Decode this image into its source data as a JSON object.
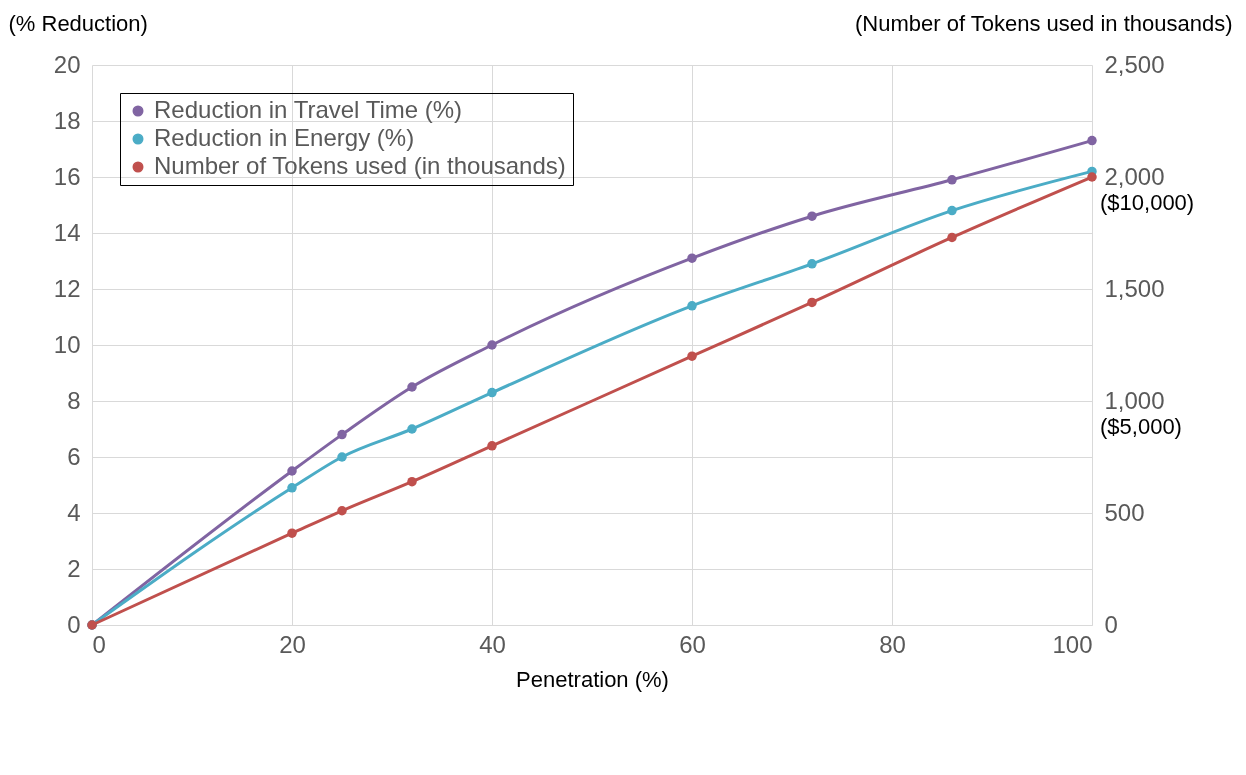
{
  "chart_data": {
    "type": "line",
    "xlabel": "Penetration (%)",
    "ylabel": "(% Reduction)",
    "y2label": "(Number of Tokens used in thousands)",
    "x": [
      0,
      20,
      25,
      32,
      40,
      60,
      72,
      86,
      100
    ],
    "series": [
      {
        "name": "Reduction in Travel Time (%)",
        "color": "#8064a2",
        "values": [
          0,
          5.5,
          6.8,
          8.5,
          10.0,
          13.1,
          14.6,
          15.9,
          17.3
        ]
      },
      {
        "name": "Reduction in Energy  (%)",
        "color": "#4bacc6",
        "values": [
          0,
          4.9,
          6.0,
          7.0,
          8.3,
          11.4,
          12.9,
          14.8,
          16.2
        ]
      },
      {
        "name": "Number of Tokens used (in thousands)",
        "color": "#c0504d",
        "axis": "y2",
        "values": [
          0,
          410,
          510,
          640,
          800,
          1200,
          1440,
          1730,
          2000
        ]
      }
    ],
    "xlim": [
      0,
      100
    ],
    "xticks": [
      0,
      20,
      40,
      60,
      80,
      100
    ],
    "ylim": [
      0,
      20
    ],
    "yticks": [
      0,
      2,
      4,
      6,
      8,
      10,
      12,
      14,
      16,
      18,
      20
    ],
    "y2lim": [
      0,
      2500
    ],
    "y2ticks": [
      0,
      500,
      {
        "value": 1000,
        "label": "1,000"
      },
      {
        "value": 1500,
        "label": "1,500"
      },
      {
        "value": 2000,
        "label": "2,000"
      },
      {
        "value": 2500,
        "label": "2,500"
      }
    ],
    "annotations": [
      "($10,000)",
      "($5,000)"
    ],
    "grid": true,
    "legend": "top left",
    "marker": "circle",
    "line_style": "solid"
  }
}
